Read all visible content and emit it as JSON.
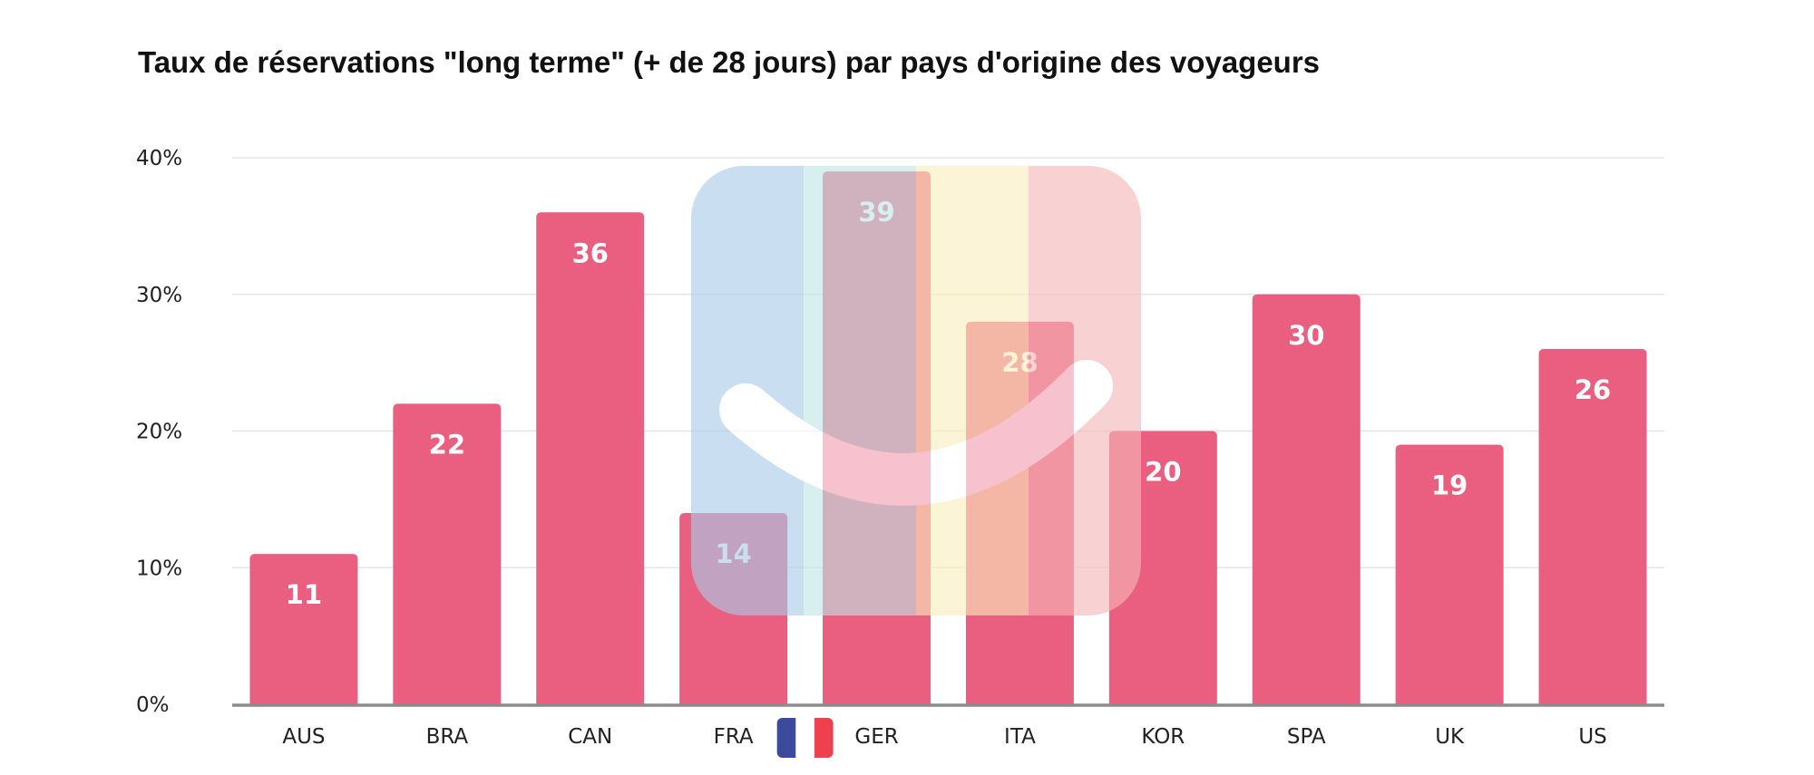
{
  "chart_data": {
    "type": "bar",
    "title": "Taux de réservations \"long terme\" (+ de 28 jours) par pays d'origine des voyageurs",
    "categories": [
      "AUS",
      "BRA",
      "CAN",
      "FRA",
      "GER",
      "ITA",
      "KOR",
      "SPA",
      "UK",
      "US"
    ],
    "values": [
      11,
      22,
      36,
      14,
      39,
      28,
      20,
      30,
      19,
      26
    ],
    "ylim": [
      0,
      40
    ],
    "yticks": [
      0,
      10,
      20,
      30,
      40
    ],
    "ytick_labels": [
      "0%",
      "10%",
      "20%",
      "30%",
      "40%"
    ],
    "xlabel": "",
    "ylabel": "",
    "grid": true,
    "bar_color": "#ea5f7f",
    "flag_category": "FRA",
    "flag_colors": [
      "#3b4a9c",
      "#ffffff",
      "#ef4050"
    ],
    "watermark": {
      "icon": "smiley-watermark-icon",
      "stripe_colors": [
        "#a9cbea",
        "#bfe6e4",
        "#fbeebd",
        "#f5b7b7"
      ]
    }
  }
}
